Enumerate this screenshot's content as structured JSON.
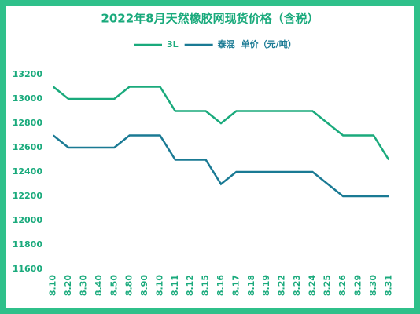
{
  "chart_data": {
    "type": "line",
    "title": "2022年8月天然橡胶网现货价格（含税）",
    "unit_label": "单价（元/吨）",
    "categories": [
      "8.10",
      "8.20",
      "8.30",
      "8.40",
      "8.50",
      "8.80",
      "8.90",
      "8.10",
      "8.11",
      "8.12",
      "8.15",
      "8.16",
      "8.17",
      "8.18",
      "8.19",
      "8.22",
      "8.23",
      "8.24",
      "8.25",
      "8.26",
      "8.29",
      "8.30",
      "8.31"
    ],
    "series": [
      {
        "name": "3L",
        "color": "#1aaa7c",
        "values": [
          13100,
          13000,
          13000,
          13000,
          13000,
          13100,
          13100,
          13100,
          12900,
          12900,
          12900,
          12800,
          12900,
          12900,
          12900,
          12900,
          12900,
          12900,
          12800,
          12700,
          12700,
          12700,
          12500
        ]
      },
      {
        "name": "泰混",
        "color": "#1a7a94",
        "values": [
          12700,
          12600,
          12600,
          12600,
          12600,
          12700,
          12700,
          12700,
          12500,
          12500,
          12500,
          12300,
          12400,
          12400,
          12400,
          12400,
          12400,
          12400,
          12300,
          12200,
          12200,
          12200,
          12200
        ]
      }
    ],
    "ylim": [
      11600,
      13200
    ],
    "yticks": [
      11600,
      11800,
      12000,
      12200,
      12400,
      12600,
      12800,
      13000,
      13200
    ]
  }
}
